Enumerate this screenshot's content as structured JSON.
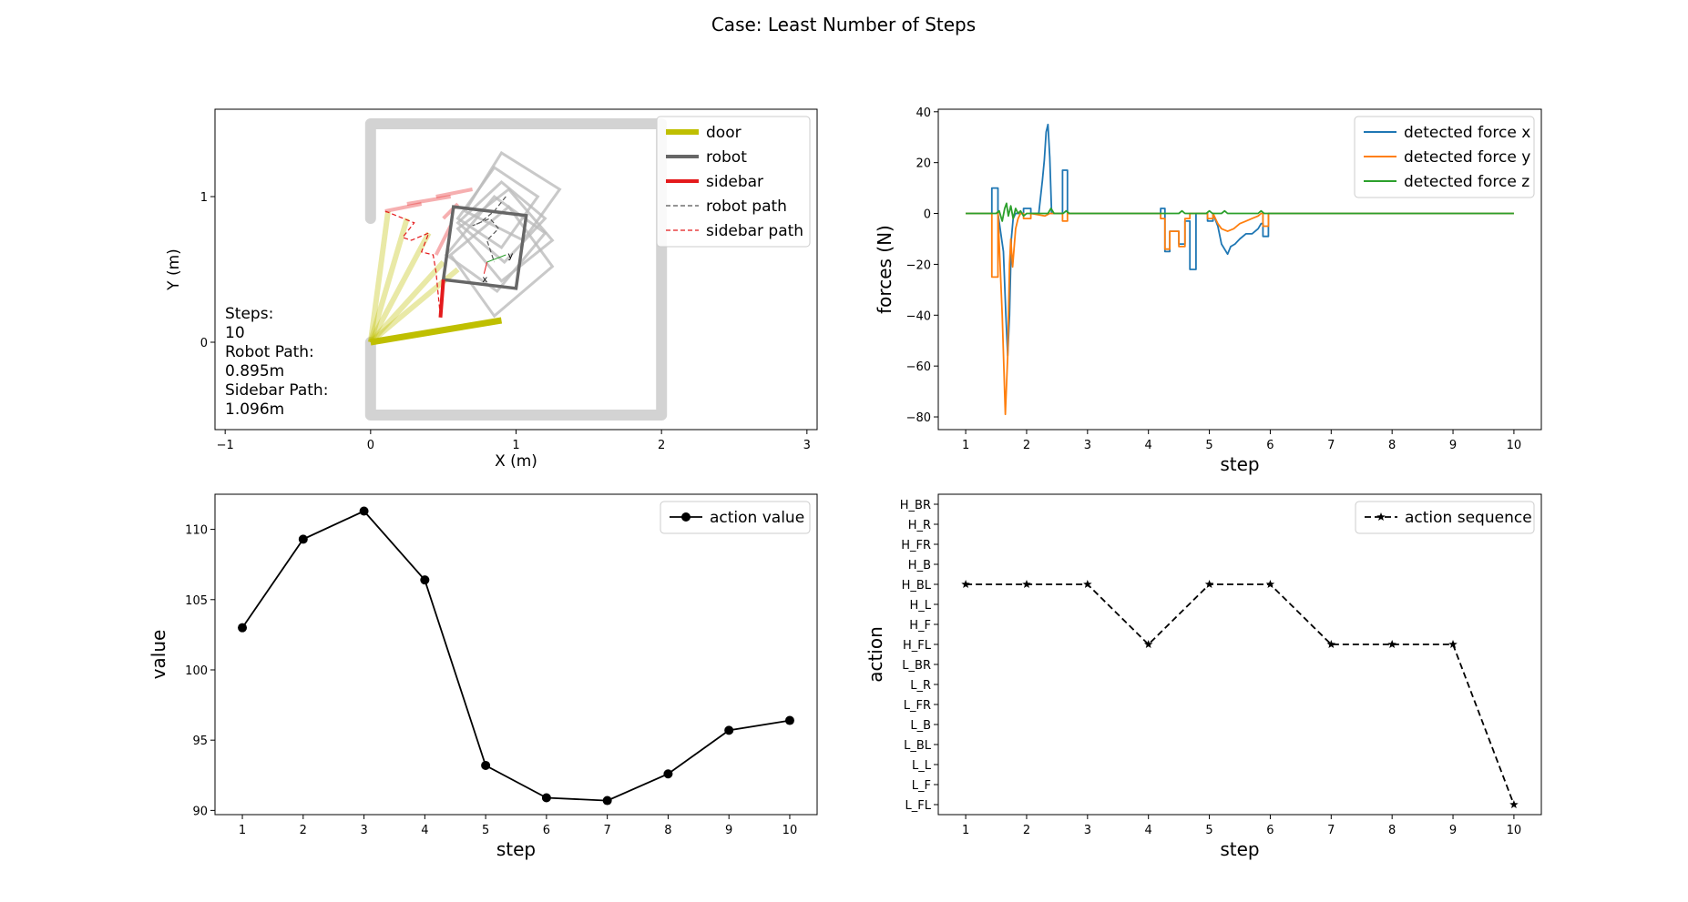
{
  "figure": {
    "title": "Case: Least Number of Steps"
  },
  "colors": {
    "door": "#bfbf00",
    "robot": "#666666",
    "sidebar": "#e41a1c",
    "wall": "#d3d3d3",
    "force_x": "#1f77b4",
    "force_y": "#ff7f0e",
    "force_z": "#2ca02c"
  },
  "chart_data": [
    {
      "id": "trajectory",
      "type": "scatter",
      "xlabel": "X (m)",
      "ylabel": "Y (m)",
      "xlim": [
        -1.07,
        3.07
      ],
      "ylim": [
        -0.6,
        1.6
      ],
      "xticks": [
        -1,
        0,
        1,
        2,
        3
      ],
      "yticks": [
        0,
        1
      ],
      "legend": [
        "door",
        "robot",
        "sidebar",
        "robot path",
        "sidebar path"
      ],
      "legend_position": "top-right",
      "annotation": [
        "Steps:",
        "10",
        "Robot Path:",
        "0.895m",
        "Sidebar Path:",
        "1.096m"
      ],
      "wall": [
        [
          0,
          0.85
        ],
        [
          0,
          1.5
        ],
        [
          2,
          1.5
        ],
        [
          2,
          -0.5
        ],
        [
          0,
          -0.5
        ],
        [
          0,
          0
        ]
      ],
      "door_final": [
        [
          0,
          0
        ],
        [
          0.9,
          0.15
        ]
      ],
      "door_history": [
        [
          [
            0,
            0
          ],
          [
            0.12,
            0.9
          ]
        ],
        [
          [
            0,
            0
          ],
          [
            0.25,
            0.85
          ]
        ],
        [
          [
            0,
            0
          ],
          [
            0.4,
            0.75
          ]
        ],
        [
          [
            0,
            0
          ],
          [
            0.5,
            0.55
          ]
        ],
        [
          [
            0,
            0
          ],
          [
            0.6,
            0.5
          ]
        ]
      ],
      "robot_final": [
        [
          0.5,
          0.43
        ],
        [
          1.0,
          0.37
        ],
        [
          1.07,
          0.87
        ],
        [
          0.57,
          0.93
        ]
      ],
      "robot_history": [
        [
          [
            0.6,
            0.78
          ],
          [
            0.95,
            1.05
          ],
          [
            1.25,
            0.7
          ],
          [
            0.9,
            0.42
          ]
        ],
        [
          [
            0.52,
            0.6
          ],
          [
            0.85,
            1.0
          ],
          [
            1.2,
            0.75
          ],
          [
            0.87,
            0.35
          ]
        ],
        [
          [
            0.55,
            0.6
          ],
          [
            0.95,
            0.93
          ],
          [
            1.25,
            0.52
          ],
          [
            0.85,
            0.18
          ]
        ],
        [
          [
            0.6,
            0.82
          ],
          [
            0.9,
            1.1
          ],
          [
            1.2,
            0.85
          ],
          [
            0.92,
            0.55
          ]
        ],
        [
          [
            0.6,
            0.85
          ],
          [
            0.85,
            1.2
          ],
          [
            1.15,
            1.0
          ],
          [
            0.9,
            0.65
          ]
        ],
        [
          [
            0.65,
            0.9
          ],
          [
            0.9,
            1.3
          ],
          [
            1.3,
            1.05
          ],
          [
            1.05,
            0.7
          ]
        ]
      ],
      "sidebar_final": [
        [
          0.5,
          0.43
        ],
        [
          0.48,
          0.17
        ]
      ],
      "sidebar_history": [
        [
          [
            0.1,
            0.9
          ],
          [
            0.35,
            0.95
          ]
        ],
        [
          [
            0.25,
            0.95
          ],
          [
            0.55,
            1.0
          ]
        ],
        [
          [
            0.45,
            1.0
          ],
          [
            0.7,
            1.05
          ]
        ],
        [
          [
            0.5,
            0.85
          ],
          [
            0.6,
            0.95
          ]
        ],
        [
          [
            0.45,
            0.6
          ],
          [
            0.55,
            0.8
          ]
        ]
      ],
      "robot_path": [
        [
          0.93,
          1.0
        ],
        [
          0.85,
          0.9
        ],
        [
          0.75,
          0.82
        ],
        [
          0.7,
          0.8
        ],
        [
          0.82,
          0.85
        ],
        [
          0.88,
          0.78
        ],
        [
          0.8,
          0.7
        ],
        [
          0.85,
          0.55
        ]
      ],
      "sidebar_path": [
        [
          0.1,
          0.9
        ],
        [
          0.3,
          0.82
        ],
        [
          0.22,
          0.72
        ],
        [
          0.28,
          0.7
        ],
        [
          0.4,
          0.75
        ],
        [
          0.35,
          0.62
        ],
        [
          0.43,
          0.6
        ],
        [
          0.45,
          0.48
        ],
        [
          0.48,
          0.17
        ]
      ],
      "local_frame": {
        "origin": [
          0.8,
          0.55
        ],
        "x_tip": [
          0.78,
          0.47
        ],
        "y_tip": [
          0.93,
          0.6
        ],
        "x_label": "x",
        "y_label": "y"
      }
    },
    {
      "id": "forces",
      "type": "line",
      "xlabel": "step",
      "ylabel": "forces (N)",
      "xlim": [
        0.55,
        10.45
      ],
      "ylim": [
        -85,
        41
      ],
      "xticks": [
        1,
        2,
        3,
        4,
        5,
        6,
        7,
        8,
        9,
        10
      ],
      "yticks": [
        40,
        20,
        0,
        -20,
        -40,
        -60,
        -80
      ],
      "legend_position": "top-right",
      "series": [
        {
          "name": "detected force x",
          "x": [
            1,
            1.43,
            1.43,
            1.53,
            1.53,
            1.62,
            1.66,
            1.69,
            1.72,
            1.75,
            1.78,
            1.82,
            1.86,
            1.9,
            1.95,
            1.95,
            2.07,
            2.07,
            2.2,
            2.26,
            2.29,
            2.32,
            2.35,
            2.38,
            2.41,
            2.45,
            2.45,
            2.59,
            2.59,
            2.67,
            2.67,
            4.2,
            4.2,
            4.27,
            4.27,
            4.35,
            4.35,
            4.5,
            4.5,
            4.6,
            4.6,
            4.68,
            4.68,
            4.78,
            4.78,
            4.97,
            4.97,
            5.06,
            5.06,
            5.14,
            5.2,
            5.3,
            5.35,
            5.42,
            5.5,
            5.6,
            5.7,
            5.8,
            5.85,
            5.88,
            5.88,
            5.97,
            5.97,
            10
          ],
          "y": [
            0,
            0,
            10,
            10,
            0,
            -15,
            -40,
            -56,
            -40,
            -10,
            -2,
            0,
            0,
            0,
            0,
            2,
            2,
            0,
            0,
            13,
            21,
            32,
            35,
            22,
            0,
            0,
            0,
            0,
            17,
            17,
            0,
            0,
            2,
            2,
            -15,
            -15,
            -7,
            -7,
            -12,
            -12,
            -3,
            -3,
            -22,
            -22,
            0,
            0,
            -3,
            -3,
            0,
            -5,
            -12,
            -16,
            -13,
            -12,
            -10,
            -8,
            -8,
            -6,
            -4,
            -4,
            -9,
            -9,
            0,
            0
          ]
        },
        {
          "name": "detected force y",
          "x": [
            1,
            1.43,
            1.43,
            1.53,
            1.53,
            1.6,
            1.65,
            1.69,
            1.72,
            1.74,
            1.77,
            1.82,
            1.86,
            1.9,
            1.95,
            1.95,
            2.07,
            2.07,
            2.3,
            2.38,
            2.45,
            2.59,
            2.59,
            2.67,
            2.67,
            4.2,
            4.2,
            4.27,
            4.27,
            4.35,
            4.35,
            4.5,
            4.5,
            4.6,
            4.6,
            4.68,
            4.68,
            4.78,
            4.78,
            4.97,
            4.97,
            5.06,
            5.06,
            5.14,
            5.2,
            5.3,
            5.4,
            5.5,
            5.6,
            5.7,
            5.8,
            5.85,
            5.88,
            5.88,
            5.97,
            5.97,
            10
          ],
          "y": [
            0,
            0,
            -25,
            -25,
            0,
            -40,
            -79,
            -56,
            -20,
            -10,
            -21,
            -6,
            -2,
            0,
            0,
            -2,
            -2,
            0,
            -1,
            0,
            0,
            0,
            -3,
            -3,
            0,
            0,
            -2,
            -2,
            -14,
            -14,
            -7,
            -7,
            -13,
            -13,
            -2,
            -2,
            0,
            0,
            0,
            0,
            -2,
            -2,
            0,
            -4,
            -6,
            -7,
            -6,
            -4,
            -3,
            -2,
            -1,
            0,
            0,
            -5,
            -5,
            0,
            0
          ]
        },
        {
          "name": "detected force z",
          "x": [
            1,
            1.5,
            1.55,
            1.6,
            1.64,
            1.67,
            1.7,
            1.74,
            1.78,
            1.82,
            1.86,
            1.9,
            1.95,
            2.0,
            2.35,
            2.4,
            2.45,
            2.6,
            2.65,
            2.7,
            4.2,
            4.5,
            4.55,
            4.6,
            4.7,
            4.95,
            5.0,
            5.05,
            5.2,
            5.25,
            5.3,
            5.8,
            5.85,
            5.9,
            10
          ],
          "y": [
            0,
            0,
            1,
            -3,
            2,
            4,
            -1,
            3,
            -2,
            2,
            0,
            1,
            -1,
            0,
            0,
            2,
            0,
            0,
            1,
            0,
            0,
            0,
            1,
            0,
            0,
            0,
            1,
            0,
            0,
            1,
            0,
            0,
            1,
            0,
            0
          ]
        }
      ]
    },
    {
      "id": "action_value",
      "type": "line",
      "xlabel": "step",
      "ylabel": "value",
      "xlim": [
        0.55,
        10.45
      ],
      "ylim": [
        89.7,
        112.5
      ],
      "xticks": [
        1,
        2,
        3,
        4,
        5,
        6,
        7,
        8,
        9,
        10
      ],
      "yticks": [
        90,
        95,
        100,
        105,
        110
      ],
      "legend_position": "top-right",
      "series": [
        {
          "name": "action value",
          "x": [
            1,
            2,
            3,
            4,
            5,
            6,
            7,
            8,
            9,
            10
          ],
          "values": [
            103.0,
            109.3,
            111.3,
            106.4,
            93.2,
            90.9,
            90.7,
            92.6,
            95.7,
            96.4
          ]
        }
      ]
    },
    {
      "id": "action_sequence",
      "type": "line",
      "xlabel": "step",
      "ylabel": "action",
      "xlim": [
        0.55,
        10.45
      ],
      "ylim": [
        -0.5,
        15.5
      ],
      "xticks": [
        1,
        2,
        3,
        4,
        5,
        6,
        7,
        8,
        9,
        10
      ],
      "categories": [
        "L_FL",
        "L_F",
        "L_L",
        "L_BL",
        "L_B",
        "L_FR",
        "L_R",
        "L_BR",
        "H_FL",
        "H_F",
        "H_L",
        "H_BL",
        "H_B",
        "H_FR",
        "H_R",
        "H_BR"
      ],
      "legend_position": "top-right",
      "series": [
        {
          "name": "action sequence",
          "x": [
            1,
            2,
            3,
            4,
            5,
            6,
            7,
            8,
            9,
            10
          ],
          "values": [
            "H_BL",
            "H_BL",
            "H_BL",
            "H_FL",
            "H_BL",
            "H_BL",
            "H_FL",
            "H_FL",
            "H_FL",
            "L_FL"
          ]
        }
      ]
    }
  ]
}
